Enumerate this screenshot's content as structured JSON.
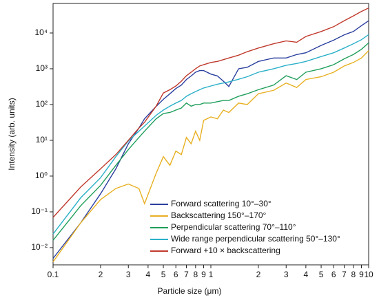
{
  "chart_data": {
    "type": "line",
    "x_label": "Particle size (μm)",
    "y_label": "Intensity (arb. units)",
    "x_log": true,
    "y_log": true,
    "xlim": [
      0.1,
      10
    ],
    "ylim": [
      0.0033,
      67000
    ],
    "xticks": [
      0.1,
      {
        "value": 0.2,
        "label": "2"
      },
      {
        "value": 0.3,
        "label": "3"
      },
      {
        "value": 0.4,
        "label": "4"
      },
      {
        "value": 0.5,
        "label": "5"
      },
      {
        "value": 0.6,
        "label": "6"
      },
      {
        "value": 0.7,
        "label": "7"
      },
      {
        "value": 0.8,
        "label": "8"
      },
      {
        "value": 0.9,
        "label": "9"
      },
      1,
      2,
      3,
      4,
      5,
      6,
      7,
      8,
      9,
      10
    ],
    "yticks": [
      {
        "value": 0.01,
        "label": "10⁻²"
      },
      {
        "value": 0.1,
        "label": "10⁻¹"
      },
      {
        "value": 1,
        "label": "10⁰"
      },
      {
        "value": 10,
        "label": "10¹"
      },
      {
        "value": 100,
        "label": "10²"
      },
      {
        "value": 1000,
        "label": "10³"
      },
      {
        "value": 10000,
        "label": "10⁴"
      }
    ],
    "legend_position": "lower right",
    "x": [
      0.1,
      0.15,
      0.2,
      0.25,
      0.3,
      0.35,
      0.38,
      0.45,
      0.5,
      0.55,
      0.6,
      0.65,
      0.7,
      0.75,
      0.8,
      0.85,
      0.9,
      1,
      1.1,
      1.2,
      1.3,
      1.5,
      1.7,
      2,
      2.5,
      3,
      3.5,
      4,
      5,
      6,
      7,
      8,
      9,
      10
    ],
    "series": [
      {
        "name": "Forward scattering 10°–30°",
        "color": "#2a3f9e",
        "values": [
          0.005,
          0.05,
          0.32,
          1.6,
          8,
          22,
          40,
          89,
          140,
          200,
          280,
          350,
          500,
          630,
          800,
          890,
          890,
          710,
          630,
          450,
          320,
          1000,
          1100,
          1600,
          2000,
          2000,
          2500,
          2800,
          4500,
          6300,
          8900,
          11000,
          16000,
          22000
        ]
      },
      {
        "name": "Backscattering 150°–170°",
        "color": "#e8b021",
        "values": [
          0.004,
          0.05,
          0.22,
          0.45,
          0.6,
          0.45,
          0.17,
          1.2,
          3.5,
          2,
          5,
          4,
          12,
          8,
          18,
          10,
          36,
          45,
          40,
          70,
          60,
          110,
          100,
          200,
          250,
          400,
          300,
          500,
          600,
          800,
          1200,
          1500,
          2000,
          3200
        ]
      },
      {
        "name": "Perpendicular scattering 70°–110°",
        "color": "#1e9e5a",
        "values": [
          0.016,
          0.15,
          0.55,
          2,
          5.5,
          12,
          18,
          40,
          56,
          60,
          70,
          80,
          110,
          90,
          100,
          100,
          110,
          110,
          120,
          130,
          130,
          170,
          200,
          260,
          350,
          640,
          500,
          800,
          1000,
          1300,
          1900,
          2500,
          3500,
          5300
        ]
      },
      {
        "name": "Wide range perpendicular scattering 50°–130°",
        "color": "#2ab0c8",
        "values": [
          0.024,
          0.25,
          0.9,
          3.5,
          9.6,
          18,
          25,
          50,
          70,
          90,
          110,
          130,
          170,
          200,
          230,
          260,
          290,
          330,
          370,
          400,
          430,
          510,
          600,
          800,
          1000,
          1250,
          1400,
          1600,
          2200,
          2800,
          3800,
          5000,
          6500,
          9000
        ]
      },
      {
        "name": "Forward +10 × backscattering",
        "color": "#c0392b",
        "values": [
          0.07,
          0.5,
          1.6,
          4,
          10,
          22,
          32,
          90,
          210,
          260,
          330,
          450,
          640,
          800,
          1000,
          1200,
          1300,
          1500,
          1600,
          1800,
          2000,
          2400,
          3000,
          3800,
          5000,
          6000,
          5500,
          8000,
          11000,
          15000,
          22000,
          30000,
          40000,
          50000
        ]
      }
    ]
  }
}
